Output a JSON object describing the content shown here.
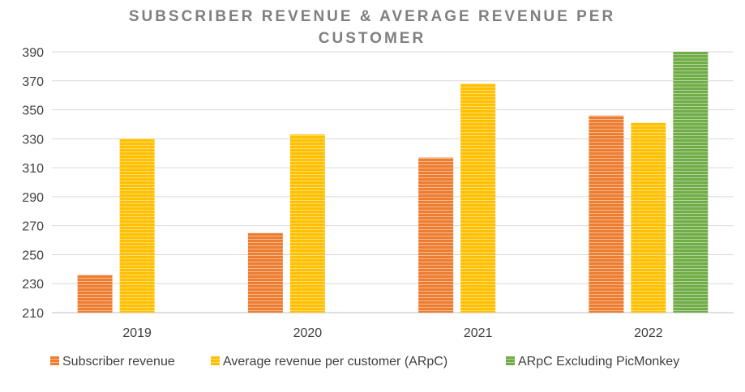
{
  "chart_data": {
    "type": "bar",
    "title_lines": [
      "SUBSCRIBER REVENUE & AVERAGE REVENUE PER",
      "CUSTOMER"
    ],
    "categories": [
      "2019",
      "2020",
      "2021",
      "2022"
    ],
    "series": [
      {
        "name": "Subscriber revenue",
        "color": "#ed7d31",
        "values": [
          236,
          265,
          317,
          346
        ]
      },
      {
        "name": "Average revenue per customer (ARpC)",
        "color": "#ffc000",
        "values": [
          330,
          333,
          368,
          341
        ]
      },
      {
        "name": "ARpC Excluding PicMonkey",
        "color": "#70ad47",
        "values": [
          null,
          null,
          null,
          390
        ]
      }
    ],
    "ylim": [
      210,
      390
    ],
    "yticks": [
      210,
      230,
      250,
      270,
      290,
      310,
      330,
      350,
      370,
      390
    ],
    "grid": true,
    "legend_position": "bottom"
  }
}
